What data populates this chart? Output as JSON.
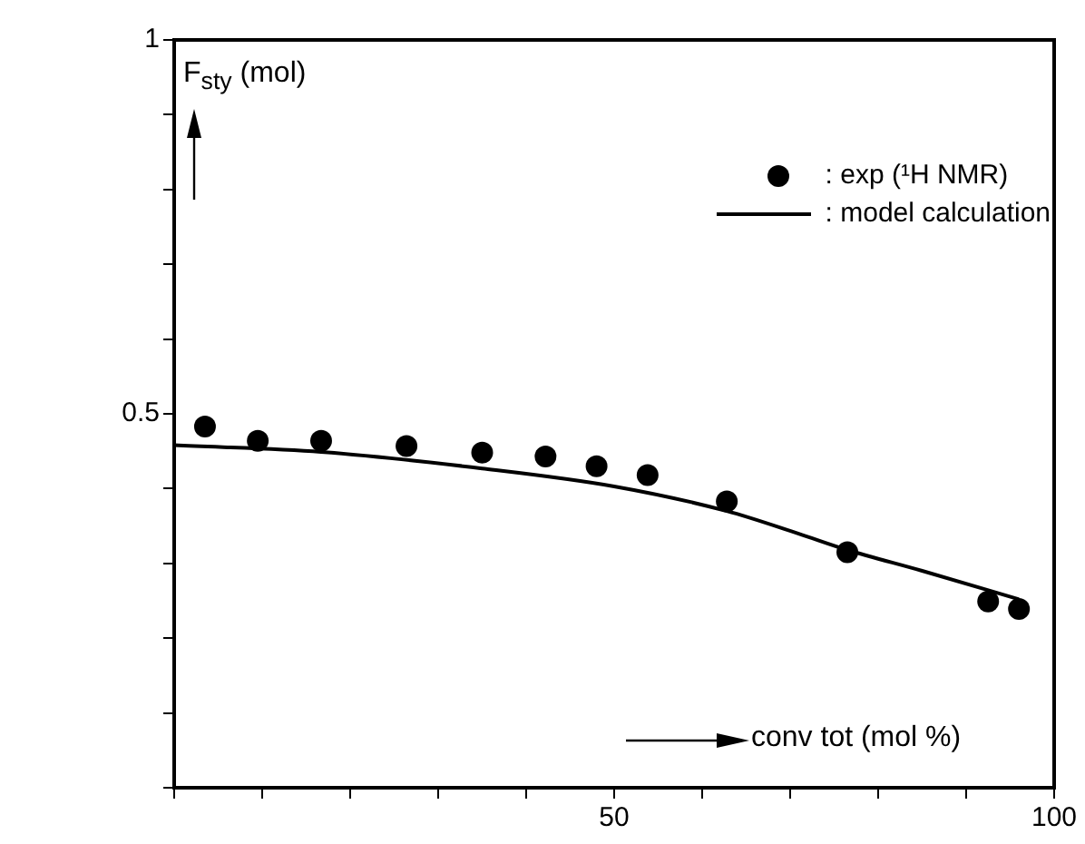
{
  "chart_data": {
    "type": "scatter",
    "xlabel": "conv tot (mol %)",
    "ylabel": "F$_{sty}$ (mol)",
    "xlim": [
      0,
      100
    ],
    "ylim": [
      0,
      1
    ],
    "xticks": [
      {
        "value": 0,
        "label": null
      },
      {
        "value": 10,
        "label": null
      },
      {
        "value": 20,
        "label": null
      },
      {
        "value": 30,
        "label": null
      },
      {
        "value": 40,
        "label": null
      },
      50,
      {
        "value": 60,
        "label": null
      },
      {
        "value": 70,
        "label": null
      },
      {
        "value": 80,
        "label": null
      },
      {
        "value": 90,
        "label": null
      },
      100
    ],
    "yticks": [
      {
        "value": 0,
        "label": null
      },
      {
        "value": 0.1,
        "label": null
      },
      {
        "value": 0.2,
        "label": null
      },
      {
        "value": 0.3,
        "label": null
      },
      {
        "value": 0.4,
        "label": null
      },
      0.5,
      {
        "value": 0.6,
        "label": null
      },
      {
        "value": 0.7,
        "label": null
      },
      {
        "value": 0.8,
        "label": null
      },
      {
        "value": 0.9,
        "label": null
      },
      1
    ],
    "legend": "top right",
    "grid": false,
    "series": [
      {
        "name": ": exp (¹H NMR)",
        "marker": "circle",
        "color": "#000000",
        "x": [
          3.5,
          9.5,
          16.7,
          26.4,
          35.0,
          42.2,
          48.0,
          53.8,
          62.8,
          76.5,
          92.5,
          96.0
        ],
        "values": [
          0.483,
          0.464,
          0.464,
          0.457,
          0.448,
          0.443,
          0.43,
          0.418,
          0.383,
          0.315,
          0.249,
          0.239
        ]
      },
      {
        "name": ": model calculation",
        "type": "line",
        "marker": "none",
        "line_style": "solid",
        "color": "#000000",
        "x": [
          0,
          16.7,
          35,
          50,
          62.8,
          70.9,
          76.5,
          85,
          96
        ],
        "values": [
          0.458,
          0.449,
          0.427,
          0.403,
          0.37,
          0.34,
          0.318,
          0.29,
          0.252
        ]
      }
    ]
  }
}
